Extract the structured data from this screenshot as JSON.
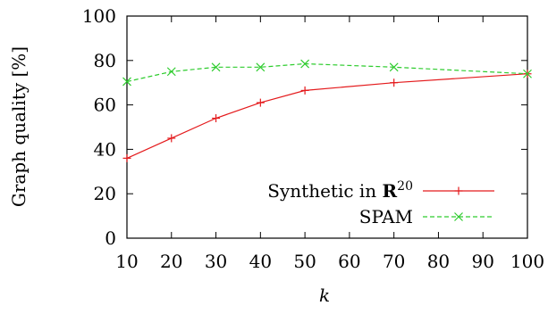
{
  "chart_data": {
    "type": "line",
    "x": [
      10,
      20,
      30,
      40,
      50,
      70,
      100
    ],
    "xticks": [
      10,
      20,
      30,
      40,
      50,
      60,
      70,
      80,
      90,
      100
    ],
    "yticks": [
      0,
      20,
      40,
      60,
      80,
      100
    ],
    "xlim": [
      10,
      100
    ],
    "ylim": [
      0,
      100
    ],
    "xlabel": "k",
    "ylabel": "Graph quality [%]",
    "grid": false,
    "legend_position": "bottom-right",
    "series": [
      {
        "name": "Synthetic in R20",
        "name_parts": {
          "text": "Synthetic in ",
          "bold": "R",
          "sup": "20"
        },
        "values": [
          36,
          45,
          54,
          61,
          66.5,
          70,
          74
        ],
        "color": "#e41a1c",
        "marker": "plus",
        "dash": "solid"
      },
      {
        "name": "SPAM",
        "values": [
          70.5,
          75,
          77,
          77,
          78.5,
          77,
          74
        ],
        "color": "#2ecc2e",
        "marker": "x",
        "dash": "dashed"
      }
    ]
  }
}
